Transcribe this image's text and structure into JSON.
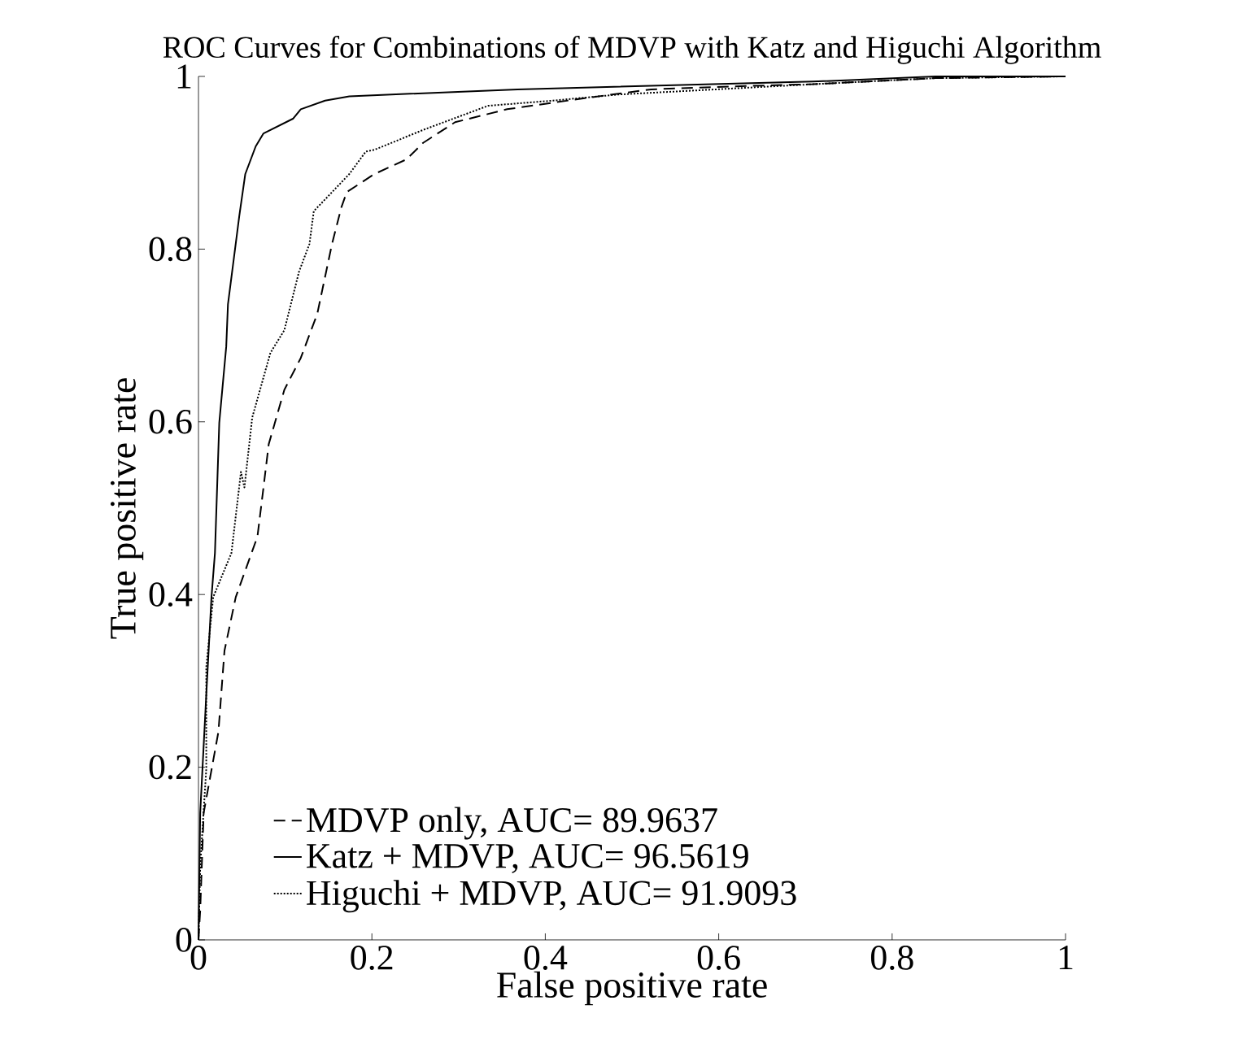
{
  "chart_data": {
    "type": "line",
    "title": "ROC Curves for Combinations of MDVP with Katz and Higuchi Algorithm",
    "xlabel": "False positive rate",
    "ylabel": "True positive rate",
    "xlim": [
      0,
      1
    ],
    "ylim": [
      0,
      1
    ],
    "xticks": [
      0,
      0.2,
      0.4,
      0.6,
      0.8,
      1
    ],
    "yticks": [
      0,
      0.2,
      0.4,
      0.6,
      0.8,
      1
    ],
    "legend": "bottom",
    "grid": false,
    "series": [
      {
        "name": "MDVP only, AUC=  89.9637",
        "color": "#000000",
        "line_style": "dashed",
        "x": [
          0,
          0.002,
          0.006,
          0.023,
          0.03,
          0.043,
          0.068,
          0.075,
          0.081,
          0.099,
          0.118,
          0.137,
          0.154,
          0.165,
          0.171,
          0.203,
          0.24,
          0.259,
          0.296,
          0.356,
          0.447,
          0.522,
          0.634,
          0.709,
          0.85,
          1
        ],
        "values": [
          0,
          0.034,
          0.147,
          0.241,
          0.335,
          0.397,
          0.467,
          0.524,
          0.574,
          0.637,
          0.674,
          0.725,
          0.806,
          0.849,
          0.866,
          0.887,
          0.904,
          0.923,
          0.947,
          0.962,
          0.975,
          0.985,
          0.989,
          0.991,
          0.998,
          1
        ]
      },
      {
        "name": "Katz + MDVP, AUC=  96.5619",
        "color": "#000000",
        "line_style": "solid",
        "x": [
          0,
          0.002,
          0.009,
          0.015,
          0.019,
          0.024,
          0.032,
          0.034,
          0.047,
          0.054,
          0.066,
          0.075,
          0.109,
          0.118,
          0.146,
          0.174,
          0.368,
          0.709,
          0.85,
          1
        ],
        "values": [
          0,
          0.147,
          0.284,
          0.397,
          0.448,
          0.599,
          0.687,
          0.736,
          0.838,
          0.887,
          0.919,
          0.934,
          0.951,
          0.962,
          0.972,
          0.977,
          0.985,
          0.994,
          1,
          1
        ]
      },
      {
        "name": "Higuchi + MDVP, AUC=  91.9093",
        "color": "#000000",
        "line_style": "dotted",
        "x": [
          0,
          0.002,
          0.009,
          0.009,
          0.017,
          0.038,
          0.049,
          0.053,
          0.062,
          0.083,
          0.099,
          0.116,
          0.128,
          0.133,
          0.156,
          0.174,
          0.193,
          0.203,
          0.259,
          0.334,
          0.409,
          0.484,
          0.597,
          0.709,
          0.85,
          1
        ],
        "values": [
          0,
          0.085,
          0.198,
          0.316,
          0.397,
          0.448,
          0.542,
          0.524,
          0.605,
          0.68,
          0.706,
          0.774,
          0.806,
          0.844,
          0.868,
          0.887,
          0.913,
          0.915,
          0.938,
          0.966,
          0.972,
          0.979,
          0.985,
          0.991,
          0.998,
          1
        ]
      }
    ]
  }
}
